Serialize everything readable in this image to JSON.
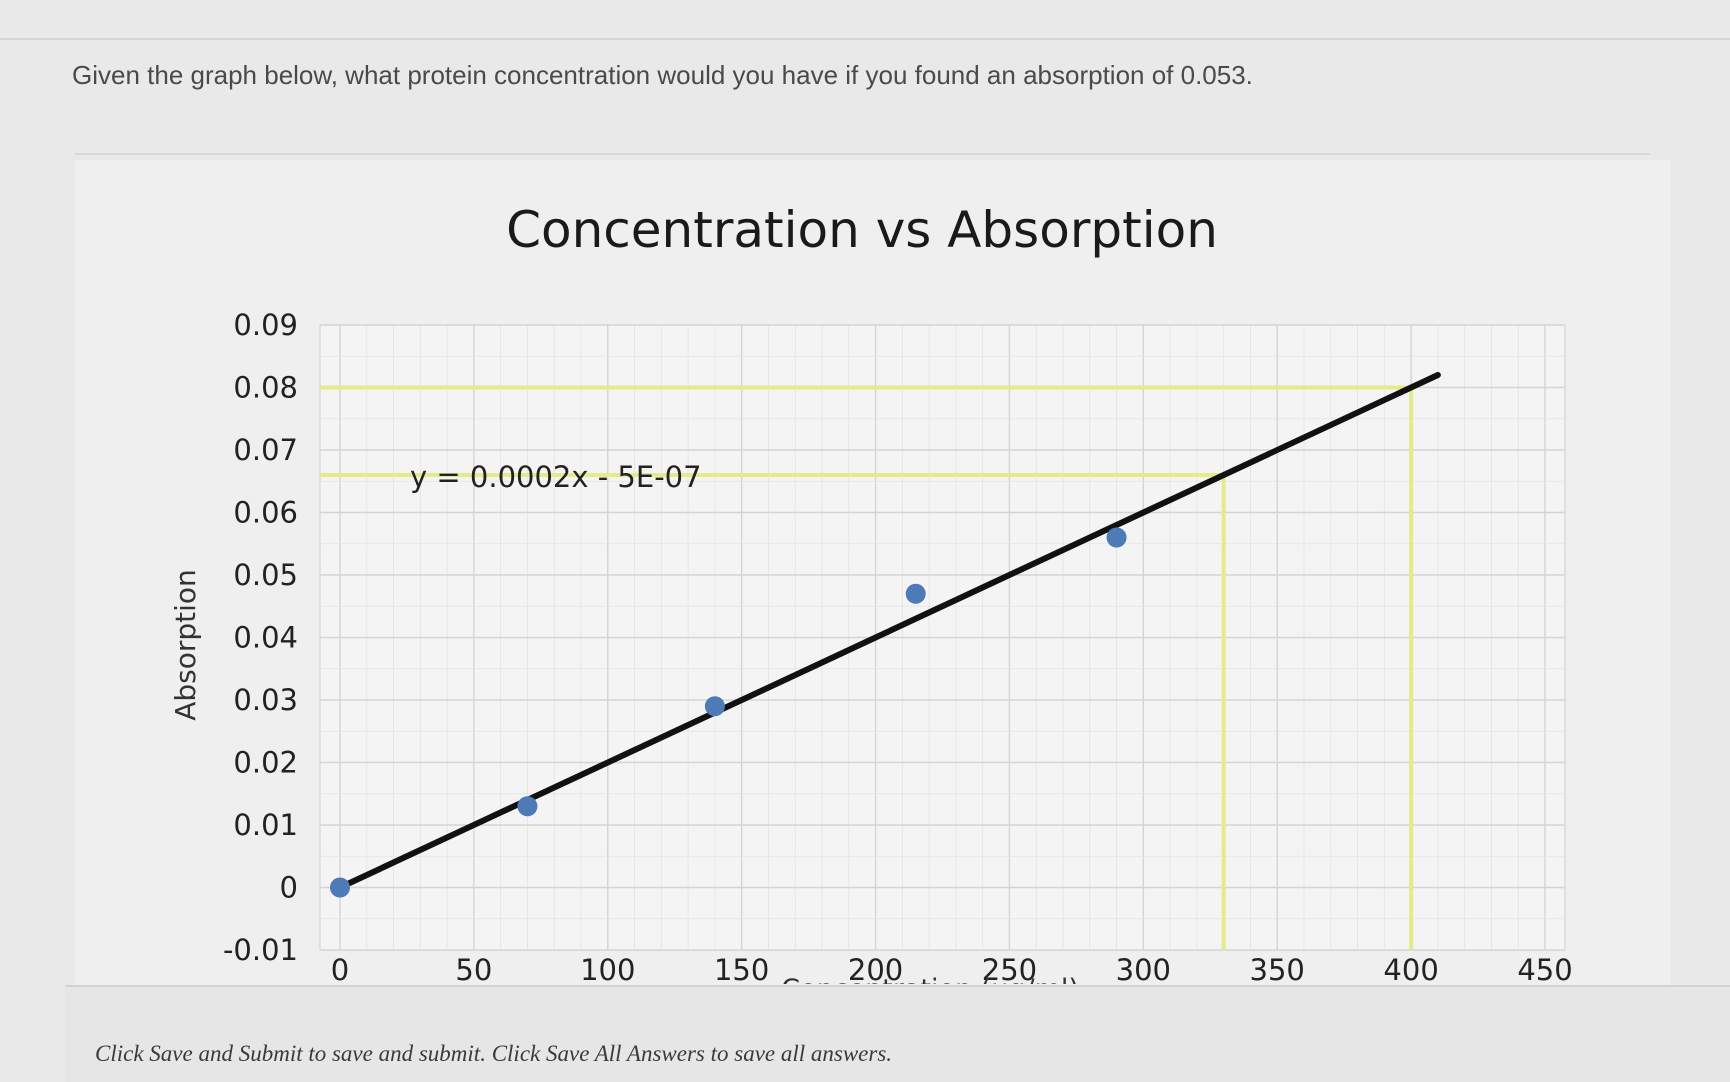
{
  "question": {
    "text": "Given the graph below, what protein concentration would you have if you found an absorption of 0.053."
  },
  "footer": {
    "text": "Click Save and Submit to save and submit. Click Save All Answers to save all answers."
  },
  "colors": {
    "trendline": "#111111",
    "points": "#4f7ab8",
    "highlight": "#e4ec8a",
    "grid": "#d4d4d4"
  },
  "chart_data": {
    "type": "scatter",
    "title": "Concentration vs Absorption",
    "xlabel": "Concentration (ug/ml)",
    "ylabel": "Absorption",
    "xlim": [
      0,
      450
    ],
    "ylim": [
      -0.01,
      0.09
    ],
    "x_ticks": [
      "0",
      "50",
      "100",
      "150",
      "200",
      "250",
      "300",
      "350",
      "400",
      "450"
    ],
    "y_ticks": [
      "-0.01",
      "0",
      "0.01",
      "0.02",
      "0.03",
      "0.04",
      "0.05",
      "0.06",
      "0.07",
      "0.08",
      "0.09"
    ],
    "grid": true,
    "series": [
      {
        "x": [
          0,
          70,
          140,
          215,
          290
        ],
        "y": [
          0,
          0.013,
          0.029,
          0.047,
          0.056
        ]
      }
    ],
    "trendline": {
      "slope": 0.0002,
      "intercept": -5e-07,
      "x_range": [
        0,
        410
      ],
      "equation": "y = 0.0002x - 5E-07"
    },
    "highlight_lines": [
      {
        "x": 330,
        "y": 0.066
      },
      {
        "x": 400,
        "y": 0.08
      }
    ]
  }
}
